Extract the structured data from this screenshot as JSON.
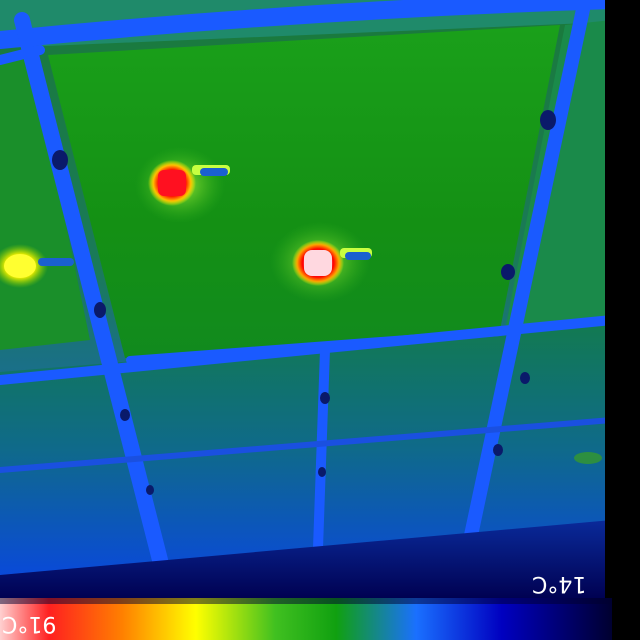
{
  "image": {
    "kind": "infrared thermal image",
    "orientation": "upside-down",
    "palette": [
      "#000040",
      "#0000c8",
      "#1a6cff",
      "#1a8f1a",
      "#3cc21a",
      "#f0f000",
      "#ff8000",
      "#ff0000",
      "#ff8080"
    ]
  },
  "scale": {
    "max_label": "91°C",
    "min_label": "14°C",
    "colors": {
      "cold": "#000050",
      "cool": "#0064ff",
      "mid": "#1a9a1a",
      "warm": "#ffff00",
      "hot": "#ff0000",
      "hottest": "#ffc0c0"
    }
  }
}
